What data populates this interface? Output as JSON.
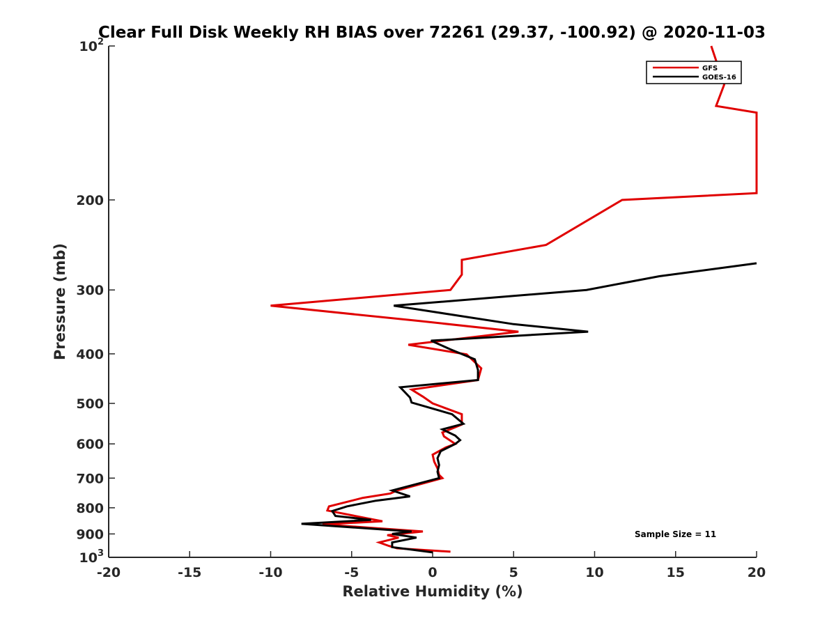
{
  "chart_data": {
    "type": "line",
    "title": "Clear Full Disk Weekly RH BIAS over 72261 (29.37, -100.92) @ 2020-11-03",
    "xlabel": "Relative Humidity (%)",
    "ylabel": "Pressure (mb)",
    "xlim": [
      -20,
      20
    ],
    "ylim": [
      100,
      1000
    ],
    "y_scale": "log",
    "y_reversed": true,
    "grid": false,
    "legend_position": "top-right",
    "x_ticks": [
      "-20",
      "-15",
      "-10",
      "-5",
      "0",
      "5",
      "10",
      "15",
      "20"
    ],
    "y_ticks": [
      {
        "value": 100,
        "base": "10",
        "exp": "2"
      },
      {
        "value": 200,
        "label": "200"
      },
      {
        "value": 300,
        "label": "300"
      },
      {
        "value": 400,
        "label": "400"
      },
      {
        "value": 500,
        "label": "500"
      },
      {
        "value": 600,
        "label": "600"
      },
      {
        "value": 700,
        "label": "700"
      },
      {
        "value": 800,
        "label": "800"
      },
      {
        "value": 900,
        "label": "900"
      },
      {
        "value": 1000,
        "base": "10",
        "exp": "3"
      }
    ],
    "annotation": "Sample Size = 11",
    "series": [
      {
        "name": "GFS",
        "color": "#e00000",
        "points": [
          [
            17.2,
            100
          ],
          [
            18.0,
            119
          ],
          [
            17.5,
            131
          ],
          [
            20.0,
            135
          ],
          [
            20.0,
            194
          ],
          [
            11.7,
            200
          ],
          [
            7.0,
            245
          ],
          [
            1.8,
            262
          ],
          [
            1.8,
            280
          ],
          [
            1.1,
            300
          ],
          [
            -10.0,
            322
          ],
          [
            -0.8,
            345
          ],
          [
            5.3,
            362
          ],
          [
            -1.5,
            384
          ],
          [
            2.1,
            401
          ],
          [
            3.0,
            427
          ],
          [
            2.8,
            450
          ],
          [
            -1.3,
            470
          ],
          [
            -0.6,
            485
          ],
          [
            0.0,
            500
          ],
          [
            1.8,
            525
          ],
          [
            1.8,
            550
          ],
          [
            0.6,
            570
          ],
          [
            0.7,
            580
          ],
          [
            1.4,
            600
          ],
          [
            0.8,
            610
          ],
          [
            0.0,
            630
          ],
          [
            0.1,
            650
          ],
          [
            0.3,
            670
          ],
          [
            0.4,
            690
          ],
          [
            0.6,
            700
          ],
          [
            -2.2,
            740
          ],
          [
            -2.6,
            750
          ],
          [
            -4.3,
            765
          ],
          [
            -6.4,
            795
          ],
          [
            -6.5,
            810
          ],
          [
            -3.1,
            850
          ],
          [
            -6.8,
            862
          ],
          [
            -0.6,
            890
          ],
          [
            -2.8,
            905
          ],
          [
            -2.1,
            915
          ],
          [
            -3.3,
            935
          ],
          [
            -2.7,
            950
          ],
          [
            -2.2,
            960
          ],
          [
            1.1,
            975
          ]
        ]
      },
      {
        "name": "GOES-16",
        "color": "#000000",
        "points": [
          [
            20.0,
            266
          ],
          [
            14.0,
            282
          ],
          [
            9.5,
            300
          ],
          [
            -2.4,
            322
          ],
          [
            5.0,
            350
          ],
          [
            9.6,
            362
          ],
          [
            -0.1,
            377
          ],
          [
            1.1,
            392
          ],
          [
            2.6,
            410
          ],
          [
            2.8,
            430
          ],
          [
            2.8,
            450
          ],
          [
            -2.0,
            465
          ],
          [
            -1.4,
            487
          ],
          [
            -1.3,
            498
          ],
          [
            1.2,
            525
          ],
          [
            1.9,
            548
          ],
          [
            0.6,
            562
          ],
          [
            1.4,
            578
          ],
          [
            1.7,
            590
          ],
          [
            1.4,
            600
          ],
          [
            0.5,
            620
          ],
          [
            0.3,
            640
          ],
          [
            0.4,
            660
          ],
          [
            0.3,
            680
          ],
          [
            0.4,
            700
          ],
          [
            -2.5,
            740
          ],
          [
            -1.4,
            760
          ],
          [
            -3.5,
            775
          ],
          [
            -5.3,
            795
          ],
          [
            -6.2,
            812
          ],
          [
            -6.0,
            830
          ],
          [
            -3.8,
            845
          ],
          [
            -8.1,
            860
          ],
          [
            -1.3,
            890
          ],
          [
            -2.5,
            900
          ],
          [
            -1.0,
            915
          ],
          [
            -2.5,
            935
          ],
          [
            -2.5,
            955
          ],
          [
            0.0,
            978
          ]
        ]
      }
    ]
  }
}
